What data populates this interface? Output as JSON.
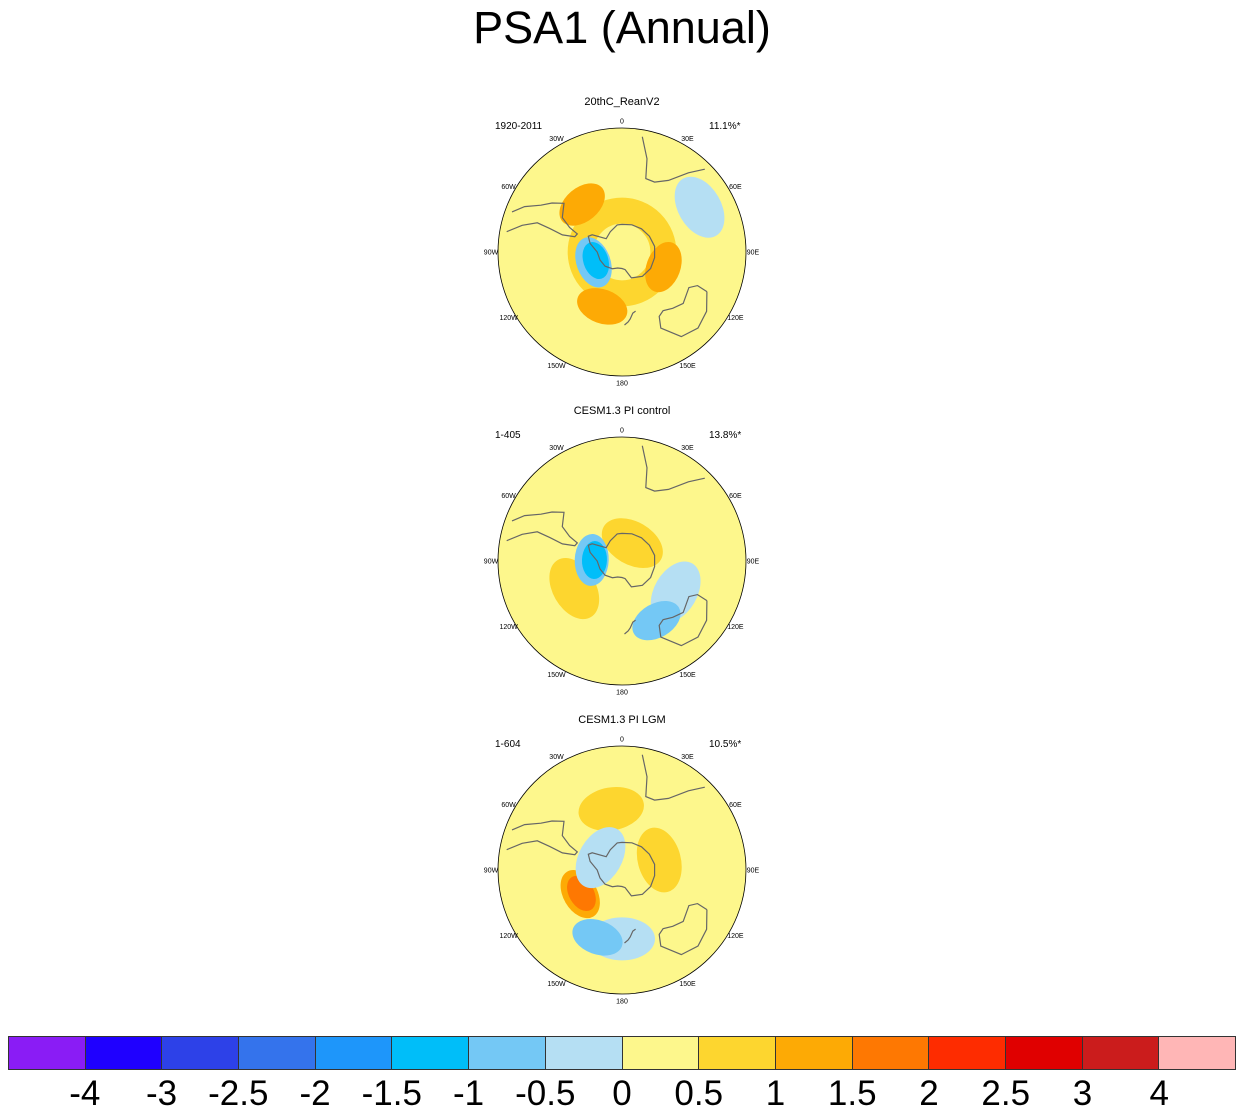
{
  "title": "PSA1 (Annual)",
  "lon_labels": [
    "0",
    "30E",
    "60E",
    "90E",
    "120E",
    "150E",
    "180",
    "150W",
    "120W",
    "90W",
    "60W",
    "30W"
  ],
  "panels": [
    {
      "title": "20thC_ReanV2",
      "period": "1920-2011",
      "variance": "11.1%*",
      "features": [
        {
          "kind": "ring",
          "lon": 0,
          "lat": -60,
          "value": 0.5
        },
        {
          "kind": "blob",
          "lon": 200,
          "lat": -48,
          "value": 1.0
        },
        {
          "kind": "blob",
          "lon": 320,
          "lat": -45,
          "value": 1.0
        },
        {
          "kind": "blob",
          "lon": 110,
          "lat": -58,
          "value": 1.0
        },
        {
          "kind": "blob",
          "lon": 250,
          "lat": -68,
          "value": -1.0
        },
        {
          "kind": "blob",
          "lon": 252,
          "lat": -70,
          "value": -1.5
        },
        {
          "kind": "blob",
          "lon": 60,
          "lat": -25,
          "value": -0.5
        }
      ]
    },
    {
      "title": "CESM1.3 PI control",
      "period": "1-405",
      "variance": "13.8%*",
      "features": [
        {
          "kind": "blob",
          "lon": 240,
          "lat": -50,
          "value": 0.5
        },
        {
          "kind": "blob",
          "lon": 30,
          "lat": -75,
          "value": 0.5
        },
        {
          "kind": "blob",
          "lon": 120,
          "lat": -45,
          "value": -0.5
        },
        {
          "kind": "blob",
          "lon": 150,
          "lat": -40,
          "value": -1.0
        },
        {
          "kind": "blob",
          "lon": 272,
          "lat": -68,
          "value": -1.0
        },
        {
          "kind": "blob",
          "lon": 272,
          "lat": -70,
          "value": -1.5
        }
      ]
    },
    {
      "title": "CESM1.3 PI LGM",
      "period": "1-604",
      "variance": "10.5%*",
      "features": [
        {
          "kind": "blob",
          "lon": 350,
          "lat": -45,
          "value": 0.5
        },
        {
          "kind": "blob",
          "lon": 240,
          "lat": -55,
          "value": 1.0
        },
        {
          "kind": "blob",
          "lon": 240,
          "lat": -56,
          "value": 1.5
        },
        {
          "kind": "blob",
          "lon": 180,
          "lat": -40,
          "value": -0.5
        },
        {
          "kind": "blob",
          "lon": 200,
          "lat": -38,
          "value": -1.0
        },
        {
          "kind": "blob",
          "lon": 300,
          "lat": -72,
          "value": -0.5
        },
        {
          "kind": "blob",
          "lon": 75,
          "lat": -62,
          "value": 0.5
        }
      ]
    }
  ],
  "colorbar": {
    "labels": [
      "-4",
      "-3",
      "-2.5",
      "-2",
      "-1.5",
      "-1",
      "-0.5",
      "0",
      "0.5",
      "1",
      "1.5",
      "2",
      "2.5",
      "3",
      "4"
    ],
    "colors": [
      "#8a1cf5",
      "#1f00ff",
      "#2d41e8",
      "#3473ec",
      "#1e96fa",
      "#00bef9",
      "#74c8f5",
      "#b5dff3",
      "#fdf78c",
      "#fdd62f",
      "#fdaa05",
      "#fe7802",
      "#fe2c00",
      "#e00000",
      "#cb1c1c",
      "#ffb6b6"
    ]
  }
}
